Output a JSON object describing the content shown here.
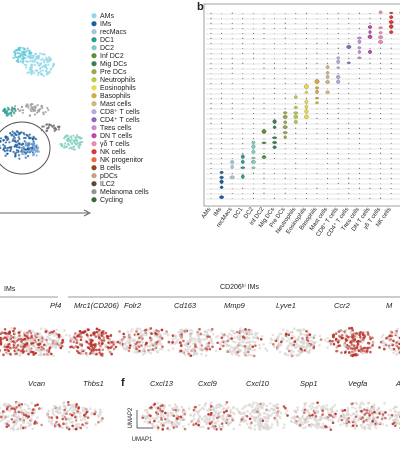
{
  "panel_labels": {
    "b": "b",
    "f": "f"
  },
  "legend": [
    {
      "label": "AMs",
      "color": "#8fd8e8"
    },
    {
      "label": "IMs",
      "color": "#1f5f9e"
    },
    {
      "label": "recMacs",
      "color": "#a9c3d6"
    },
    {
      "label": "DC1",
      "color": "#2a9d8f"
    },
    {
      "label": "DC2",
      "color": "#7fcfbf"
    },
    {
      "label": "Inf DC2",
      "color": "#5b8f3a"
    },
    {
      "label": "Mig DCs",
      "color": "#3f7f4f"
    },
    {
      "label": "Pre DCs",
      "color": "#9aa84a"
    },
    {
      "label": "Neutrophils",
      "color": "#b9c84a"
    },
    {
      "label": "Eosinophils",
      "color": "#e8d84a"
    },
    {
      "label": "Basophils",
      "color": "#d9a93a"
    },
    {
      "label": "Mast cells",
      "color": "#c9b97a"
    },
    {
      "label": "CD8⁺ T cells",
      "color": "#b8a8d8"
    },
    {
      "label": "CD4⁺ T cells",
      "color": "#8a6ab8"
    },
    {
      "label": "Tʀᴇɢ cells",
      "color": "#c88ad8"
    },
    {
      "label": "DN T cells",
      "color": "#b84aa8"
    },
    {
      "label": "γδ T cells",
      "color": "#e88ab8"
    },
    {
      "label": "NK cells",
      "color": "#d8393a"
    },
    {
      "label": "NK progenitor",
      "color": "#e8693a"
    },
    {
      "label": "B cells",
      "color": "#8a4a2a"
    },
    {
      "label": "pDCs",
      "color": "#c8a07a"
    },
    {
      "label": "ILC2",
      "color": "#5a4a3a"
    },
    {
      "label": "Melanoma cells",
      "color": "#8a9a8a"
    },
    {
      "label": "Cycling",
      "color": "#3a6a3a"
    }
  ],
  "sections": {
    "ims": "IMs",
    "cd206": "CD206ʰⁱ IMs"
  },
  "row1": [
    "Pf4",
    "Mrc1(CD206)",
    "Folr2",
    "Cd163",
    "Mmp9",
    "Lyve1",
    "Ccr2",
    "M"
  ],
  "row2": [
    "Vcan",
    "Thbs1",
    "Cxcl13",
    "Cxcl9",
    "Cxcl10",
    "Spp1",
    "Vegfa",
    "Ar"
  ],
  "axes": {
    "umap2": "UMAP2",
    "umap1": "UMAP1"
  }
}
